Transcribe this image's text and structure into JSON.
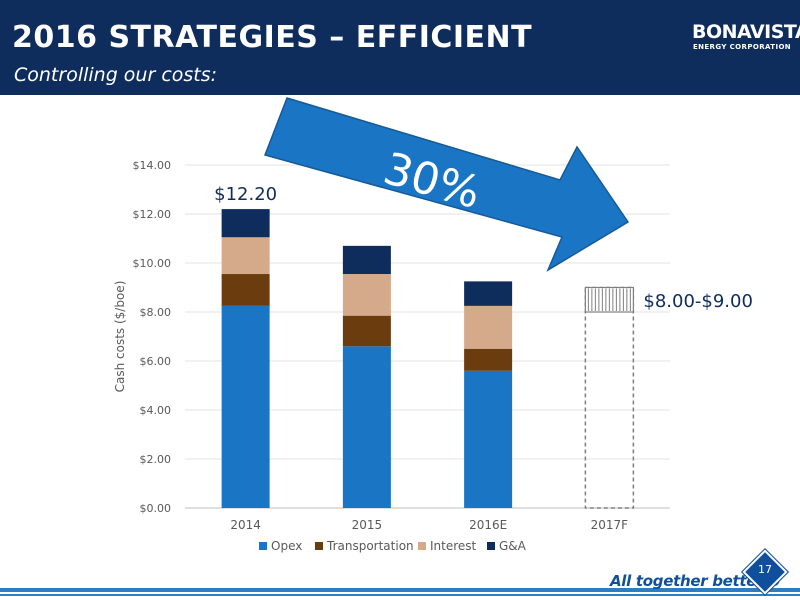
{
  "header": {
    "title": "2016 STRATEGIES – EFFICIENT",
    "subtitle": "Controlling our costs:",
    "logo_name": "BONAVISTA",
    "logo_sub": "ENERGY CORPORATION"
  },
  "footer": {
    "tagline": "All together better.®",
    "page_number": "17"
  },
  "colors": {
    "header_bg": "#0f2d5c",
    "arrow": "#1a75c4",
    "opex": "#1a75c4",
    "transportation": "#6b3c0d",
    "interest": "#d4aa8a",
    "ga": "#0f2d5c"
  },
  "chart_data": {
    "type": "bar",
    "stacked": true,
    "categories": [
      "2014",
      "2015",
      "2016E",
      "2017F"
    ],
    "series": [
      {
        "name": "Opex",
        "values": [
          8.25,
          6.6,
          5.6,
          null
        ]
      },
      {
        "name": "Transportation",
        "values": [
          1.3,
          1.25,
          0.9,
          null
        ]
      },
      {
        "name": "Interest",
        "values": [
          1.5,
          1.7,
          1.75,
          null
        ]
      },
      {
        "name": "G&A",
        "values": [
          1.15,
          1.15,
          1.0,
          null
        ]
      }
    ],
    "forecast": {
      "category": "2017F",
      "low": 8.0,
      "high": 9.0,
      "label": "$8.00-$9.00"
    },
    "ylabel": "Cash costs ($/boe)",
    "xlabel": "",
    "ylim": [
      0,
      14
    ],
    "yticks": [
      "$0.00",
      "$2.00",
      "$4.00",
      "$6.00",
      "$8.00",
      "$10.00",
      "$12.00",
      "$14.00"
    ],
    "grid": true,
    "legend": "bottom",
    "annotations": {
      "total_2014": "$12.20",
      "reduction": "30%"
    }
  }
}
